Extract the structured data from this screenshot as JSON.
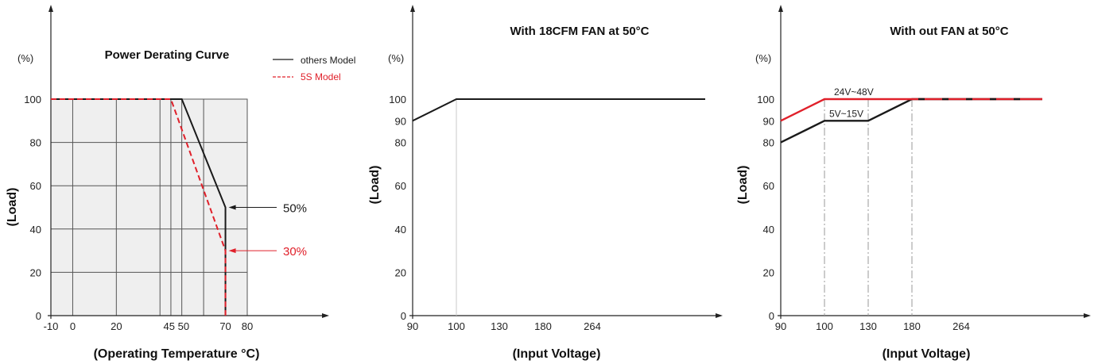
{
  "colors": {
    "black": "#1a1a1a",
    "red": "#e0202a",
    "grid": "#555555",
    "shade": "#efefef",
    "axis": "#222222",
    "guide": "#9a9a9a"
  },
  "chart_data": [
    {
      "type": "line",
      "title": "Power Derating Curve",
      "unit_label": "(%)",
      "ylabel": "(Load)",
      "xlabel": "(Operating Temperature °C)",
      "x_ticks": [
        {
          "label": "-10",
          "value": -10
        },
        {
          "label": "0",
          "value": 0
        },
        {
          "label": "20",
          "value": 20
        },
        {
          "label": "45",
          "value": 45
        },
        {
          "label": "50",
          "value": 50
        },
        {
          "label": "70",
          "value": 70
        },
        {
          "label": "80",
          "value": 80
        }
      ],
      "y_ticks": [
        0,
        20,
        40,
        60,
        80,
        100
      ],
      "xlim": [
        -10,
        80
      ],
      "ylim": [
        0,
        100
      ],
      "grid_x": [
        0,
        20,
        40,
        45,
        50,
        60
      ],
      "grid_y": [
        20,
        40,
        60,
        80
      ],
      "grid": true,
      "legend_position": "top-right",
      "series": [
        {
          "name": "others Model",
          "color": "#1a1a1a",
          "dash": false,
          "x": [
            -10,
            50,
            70,
            70
          ],
          "y": [
            100,
            100,
            50,
            0
          ]
        },
        {
          "name": "5S Model",
          "color": "#e0202a",
          "dash": true,
          "x": [
            -10,
            45,
            70,
            70
          ],
          "y": [
            100,
            100,
            30,
            0
          ]
        }
      ],
      "annotations": [
        {
          "text": "50%",
          "x": 70,
          "y": 50,
          "color": "#1a1a1a"
        },
        {
          "text": "30%",
          "x": 70,
          "y": 30,
          "color": "#e0202a"
        }
      ]
    },
    {
      "type": "line",
      "title": "With 18CFM FAN at 50°C",
      "unit_label": "(%)",
      "ylabel": "(Load)",
      "xlabel": "(Input Voltage)",
      "x_ticks": [
        "90",
        "100",
        "130",
        "180",
        "264"
      ],
      "y_ticks": [
        0,
        20,
        40,
        60,
        80,
        90,
        100
      ],
      "ylim": [
        0,
        100
      ],
      "guides": [
        "100"
      ],
      "series": [
        {
          "name": "",
          "color": "#1a1a1a",
          "x": [
            "90",
            "100",
            "end"
          ],
          "y": [
            90,
            100,
            100
          ]
        }
      ]
    },
    {
      "type": "line",
      "title": "With out  FAN at 50°C",
      "unit_label": "(%)",
      "ylabel": "(Load)",
      "xlabel": "(Input Voltage)",
      "x_ticks": [
        "90",
        "100",
        "130",
        "180",
        "264"
      ],
      "y_ticks": [
        0,
        20,
        40,
        60,
        80,
        90,
        100
      ],
      "ylim": [
        0,
        100
      ],
      "guides": [
        "100",
        "130",
        "180"
      ],
      "series": [
        {
          "name": "5V~15V",
          "color": "#1a1a1a",
          "x": [
            "90",
            "100",
            "130",
            "180",
            "end"
          ],
          "y": [
            80,
            90,
            90,
            100,
            100
          ]
        },
        {
          "name": "24V~48V",
          "color": "#e0202a",
          "x": [
            "90",
            "100",
            "end"
          ],
          "y": [
            90,
            100,
            100
          ]
        }
      ]
    }
  ]
}
